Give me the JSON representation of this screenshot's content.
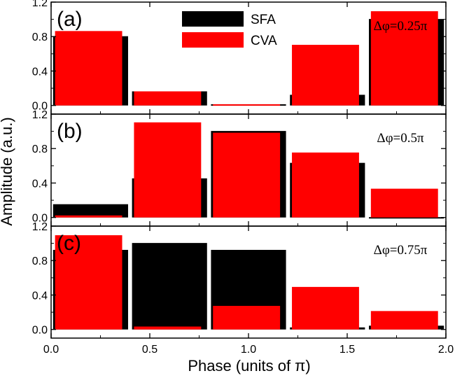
{
  "chart_data": {
    "type": "bar",
    "xlabel": "Phase (units of π)",
    "ylabel": "Amplitude (a.u.)",
    "xlim": [
      0.0,
      2.0
    ],
    "ylim": [
      -0.1,
      1.2
    ],
    "x_ticks": [
      "0.0",
      "0.5",
      "1.0",
      "1.5",
      "2.0"
    ],
    "y_ticks": [
      "0.0",
      "0.4",
      "0.8",
      "1.2"
    ],
    "legend": {
      "position": "top-center",
      "entries": [
        "SFA",
        "CVA"
      ]
    },
    "colors": {
      "SFA": "#000000",
      "CVA": "#ff0000"
    },
    "bin_edges": [
      0.0,
      0.4,
      0.8,
      1.2,
      1.6,
      2.0
    ],
    "panels": [
      {
        "label": "(a)",
        "annotation": "Δφ=0.25π",
        "series": [
          {
            "name": "SFA",
            "values": [
              0.8,
              0.16,
              0.01,
              0.12,
              1.0
            ]
          },
          {
            "name": "CVA",
            "values": [
              0.86,
              0.16,
              0.01,
              0.7,
              1.09
            ]
          }
        ]
      },
      {
        "label": "(b)",
        "annotation": "Δφ=0.5π",
        "series": [
          {
            "name": "SFA",
            "values": [
              0.15,
              0.45,
              1.0,
              0.63,
              0.0
            ]
          },
          {
            "name": "CVA",
            "values": [
              0.02,
              1.1,
              0.98,
              0.75,
              0.33
            ]
          }
        ]
      },
      {
        "label": "(c)",
        "annotation": "Δφ=0.75π",
        "series": [
          {
            "name": "SFA",
            "values": [
              0.92,
              1.0,
              0.92,
              0.02,
              0.04
            ]
          },
          {
            "name": "CVA",
            "values": [
              1.09,
              0.03,
              0.27,
              0.49,
              0.21
            ]
          }
        ]
      }
    ]
  }
}
